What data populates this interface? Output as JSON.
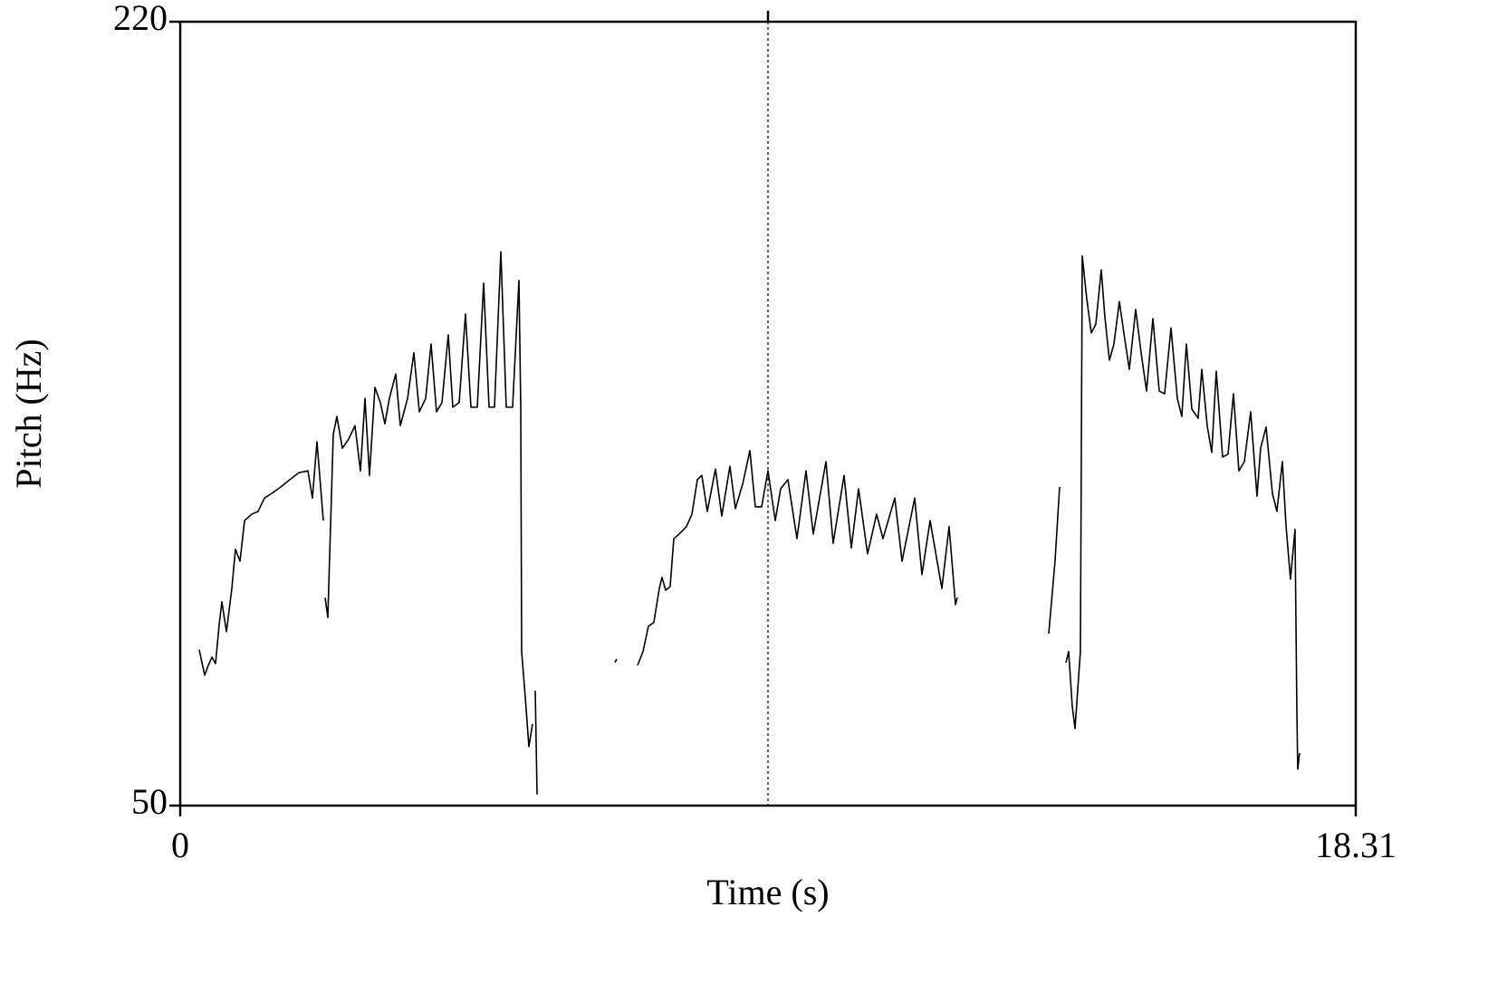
{
  "chart_data": {
    "type": "line",
    "xlabel": "Time (s)",
    "ylabel": "Pitch (Hz)",
    "color": "#000000",
    "xlim": [
      0,
      18.31
    ],
    "xticks": [
      0,
      18.31
    ],
    "ylim": [
      50,
      220
    ],
    "yticks": [
      50,
      220
    ],
    "cursor_x": 9.155,
    "x": [
      0.296,
      0.381,
      0.437,
      0.494,
      0.55,
      0.607,
      0.649,
      0.72,
      0.804,
      0.86,
      0.931,
      1.002,
      1.114,
      1.213,
      1.312,
      1.425,
      1.566,
      1.707,
      1.848,
      1.989,
      2.059,
      2.13,
      2.229,
      null,
      2.257,
      2.299,
      2.384,
      2.44,
      2.525,
      2.624,
      2.722,
      2.807,
      2.878,
      2.948,
      3.033,
      3.117,
      3.188,
      3.258,
      3.357,
      3.428,
      3.541,
      3.639,
      3.724,
      3.823,
      3.907,
      3.992,
      4.077,
      4.175,
      4.246,
      4.345,
      4.443,
      4.528,
      4.627,
      4.726,
      4.81,
      4.895,
      4.994,
      5.078,
      5.177,
      5.276,
      5.304,
      5.318,
      5.374,
      5.431,
      5.487,
      null,
      5.53,
      5.544,
      5.558,
      null,
      6.771,
      6.799,
      null,
      7.124,
      7.208,
      7.293,
      7.377,
      7.462,
      7.504,
      7.561,
      7.631,
      7.688,
      7.772,
      7.885,
      7.97,
      8.055,
      8.125,
      8.21,
      8.337,
      8.435,
      8.562,
      8.647,
      8.76,
      8.873,
      8.957,
      9.056,
      9.155,
      9.268,
      9.352,
      9.465,
      9.606,
      9.747,
      9.86,
      10.058,
      10.17,
      10.34,
      10.453,
      10.566,
      10.706,
      10.847,
      10.946,
      11.13,
      11.243,
      11.44,
      11.553,
      11.68,
      11.863,
      11.976,
      12.075,
      12.103,
      null,
      13.528,
      13.626,
      13.697,
      null,
      13.796,
      13.838,
      13.894,
      13.937,
      14.021,
      14.05,
      14.12,
      14.191,
      14.261,
      14.346,
      14.402,
      14.473,
      14.543,
      14.628,
      14.713,
      14.783,
      14.882,
      14.967,
      15.051,
      15.15,
      15.249,
      15.333,
      15.432,
      15.531,
      15.601,
      15.672,
      15.757,
      15.855,
      15.912,
      15.996,
      16.067,
      16.137,
      16.236,
      16.321,
      16.405,
      16.49,
      16.575,
      16.673,
      16.772,
      16.828,
      16.913,
      17.012,
      17.082,
      17.167,
      17.223,
      17.293,
      17.364,
      17.392,
      17.406,
      17.435
    ],
    "values": [
      83.8,
      78.3,
      80.4,
      82.2,
      80.8,
      89.3,
      94.2,
      87.7,
      97.1,
      105.6,
      103.0,
      111.8,
      113.2,
      113.8,
      116.7,
      117.7,
      119.1,
      120.7,
      122.2,
      122.6,
      116.7,
      128.9,
      111.8,
      null,
      95.1,
      90.8,
      130.5,
      134.4,
      127.5,
      129.5,
      132.4,
      122.6,
      138.3,
      121.6,
      140.7,
      137.4,
      132.8,
      138.3,
      143.6,
      132.4,
      138.3,
      148.2,
      135.4,
      138.3,
      150.1,
      135.4,
      137.4,
      152.1,
      136.4,
      137.4,
      156.6,
      136.4,
      136.4,
      163.3,
      136.4,
      136.4,
      170.1,
      136.4,
      136.4,
      163.9,
      136.4,
      83.4,
      73.6,
      62.8,
      67.7,
      null,
      74.9,
      63.7,
      52.4,
      null,
      81.0,
      81.8,
      null,
      80.4,
      83.4,
      88.9,
      89.7,
      97.1,
      99.5,
      96.7,
      97.5,
      107.9,
      108.9,
      110.5,
      113.2,
      120.7,
      121.6,
      113.8,
      123.0,
      112.8,
      123.6,
      114.4,
      119.7,
      127.0,
      114.8,
      114.8,
      122.6,
      111.8,
      118.7,
      120.7,
      107.9,
      122.6,
      108.9,
      124.6,
      106.9,
      121.6,
      105.9,
      118.7,
      104.6,
      113.2,
      107.9,
      116.7,
      103.0,
      116.7,
      100.1,
      111.8,
      97.1,
      110.5,
      93.6,
      95.1,
      null,
      87.3,
      103.0,
      119.1,
      null,
      81.0,
      83.4,
      71.6,
      66.7,
      83.4,
      169.2,
      159.9,
      152.5,
      154.4,
      166.2,
      156.0,
      146.6,
      150.1,
      159.3,
      151.1,
      144.6,
      157.6,
      148.2,
      139.9,
      155.6,
      139.9,
      139.3,
      153.6,
      138.3,
      134.4,
      150.1,
      136.0,
      134.0,
      144.6,
      132.4,
      126.6,
      144.2,
      125.6,
      126.2,
      139.3,
      122.6,
      124.6,
      135.4,
      117.1,
      127.5,
      132.1,
      117.7,
      113.8,
      124.6,
      110.9,
      99.1,
      109.9,
      71.6,
      57.9,
      61.4
    ]
  }
}
